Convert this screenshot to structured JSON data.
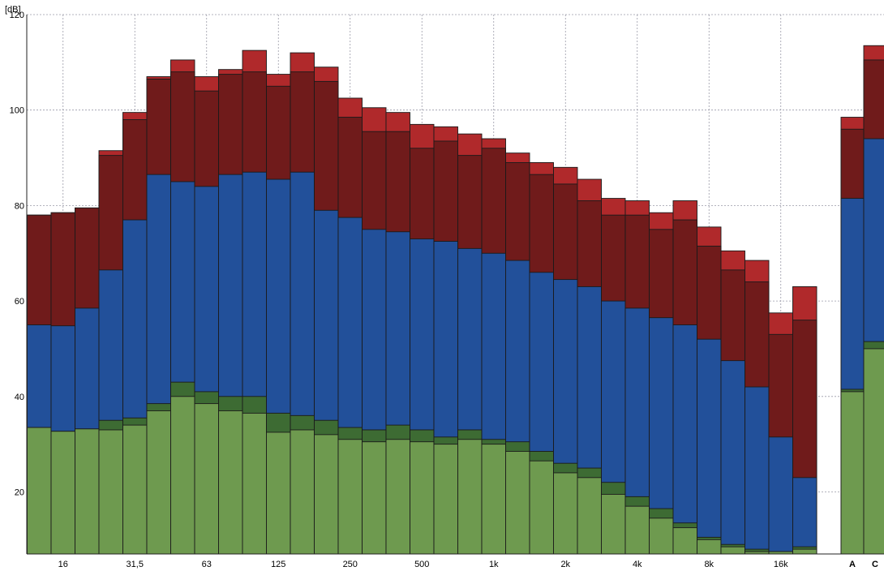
{
  "chart_data": {
    "type": "bar",
    "stacked": true,
    "overlay_stacked_levels": true,
    "y_unit_label": "[dB]",
    "ylim": [
      7,
      120
    ],
    "y_ticks": [
      20,
      40,
      60,
      80,
      100,
      120
    ],
    "grid": true,
    "x_tick_labels": [
      "16",
      "31,5",
      "63",
      "125",
      "250",
      "500",
      "1k",
      "2k",
      "4k",
      "8k",
      "16k"
    ],
    "x_tick_label_band_indices": [
      1,
      4,
      7,
      10,
      13,
      16,
      19,
      22,
      25,
      28,
      31
    ],
    "band_count": 33,
    "summary_categories": [
      "A",
      "C"
    ],
    "band_values": [
      {
        "g_light": 33.5,
        "g_dark": 33.5,
        "blue": 55,
        "dark_red": 78,
        "red": 78
      },
      {
        "g_light": 32.7,
        "g_dark": 32.7,
        "blue": 54.8,
        "dark_red": 78.5,
        "red": 78.5
      },
      {
        "g_light": 33.2,
        "g_dark": 33.2,
        "blue": 58.5,
        "dark_red": 79.5,
        "red": 79.5
      },
      {
        "g_light": 33,
        "g_dark": 35,
        "blue": 66.5,
        "dark_red": 90.5,
        "red": 91.5
      },
      {
        "g_light": 34,
        "g_dark": 35.5,
        "blue": 77,
        "dark_red": 98,
        "red": 99.5
      },
      {
        "g_light": 37,
        "g_dark": 38.5,
        "blue": 86.5,
        "dark_red": 106.5,
        "red": 107
      },
      {
        "g_light": 40,
        "g_dark": 43,
        "blue": 85,
        "dark_red": 108,
        "red": 110.5
      },
      {
        "g_light": 38.5,
        "g_dark": 41,
        "blue": 84,
        "dark_red": 104,
        "red": 107
      },
      {
        "g_light": 37,
        "g_dark": 40,
        "blue": 86.5,
        "dark_red": 107.5,
        "red": 108.5
      },
      {
        "g_light": 36.5,
        "g_dark": 40,
        "blue": 87,
        "dark_red": 108,
        "red": 112.5
      },
      {
        "g_light": 32.5,
        "g_dark": 36.5,
        "blue": 85.5,
        "dark_red": 105,
        "red": 107.5
      },
      {
        "g_light": 33,
        "g_dark": 36,
        "blue": 87,
        "dark_red": 108,
        "red": 112
      },
      {
        "g_light": 32,
        "g_dark": 35,
        "blue": 79,
        "dark_red": 106,
        "red": 109
      },
      {
        "g_light": 31,
        "g_dark": 33.5,
        "blue": 77.5,
        "dark_red": 98.5,
        "red": 102.5
      },
      {
        "g_light": 30.5,
        "g_dark": 33,
        "blue": 75,
        "dark_red": 95.5,
        "red": 100.5
      },
      {
        "g_light": 31,
        "g_dark": 34,
        "blue": 74.5,
        "dark_red": 95.5,
        "red": 99.5
      },
      {
        "g_light": 30.5,
        "g_dark": 33,
        "blue": 73,
        "dark_red": 92,
        "red": 97
      },
      {
        "g_light": 30,
        "g_dark": 31.5,
        "blue": 72.5,
        "dark_red": 93.5,
        "red": 96.5
      },
      {
        "g_light": 31,
        "g_dark": 33,
        "blue": 71,
        "dark_red": 90.5,
        "red": 95
      },
      {
        "g_light": 30,
        "g_dark": 31,
        "blue": 70,
        "dark_red": 92,
        "red": 94
      },
      {
        "g_light": 28.5,
        "g_dark": 30.5,
        "blue": 68.5,
        "dark_red": 89,
        "red": 91
      },
      {
        "g_light": 26.5,
        "g_dark": 28.5,
        "blue": 66,
        "dark_red": 86.5,
        "red": 89
      },
      {
        "g_light": 24,
        "g_dark": 26,
        "blue": 64.5,
        "dark_red": 84.5,
        "red": 88
      },
      {
        "g_light": 23,
        "g_dark": 25,
        "blue": 63,
        "dark_red": 81,
        "red": 85.5
      },
      {
        "g_light": 19.5,
        "g_dark": 22,
        "blue": 60,
        "dark_red": 78,
        "red": 81.5
      },
      {
        "g_light": 17,
        "g_dark": 19,
        "blue": 58.5,
        "dark_red": 78,
        "red": 81
      },
      {
        "g_light": 14.5,
        "g_dark": 16.5,
        "blue": 56.5,
        "dark_red": 75,
        "red": 78.5
      },
      {
        "g_light": 12.5,
        "g_dark": 13.5,
        "blue": 55,
        "dark_red": 77,
        "red": 81
      },
      {
        "g_light": 10,
        "g_dark": 10.5,
        "blue": 52,
        "dark_red": 71.5,
        "red": 75.5
      },
      {
        "g_light": 8.5,
        "g_dark": 9,
        "blue": 47.5,
        "dark_red": 66.5,
        "red": 70.5
      },
      {
        "g_light": 7.5,
        "g_dark": 8,
        "blue": 42,
        "dark_red": 64,
        "red": 68.5
      },
      {
        "g_light": 7.5,
        "g_dark": 7.5,
        "blue": 31.5,
        "dark_red": 53,
        "red": 57.5
      },
      {
        "g_light": 8,
        "g_dark": 8.5,
        "blue": 23,
        "dark_red": 56,
        "red": 63
      }
    ],
    "summary_values": [
      {
        "g_light": 41,
        "g_dark": 41.5,
        "blue": 81.5,
        "dark_red": 96,
        "red": 98.5
      },
      {
        "g_light": 50,
        "g_dark": 51.5,
        "blue": 94,
        "dark_red": 110.5,
        "red": 113.5
      }
    ],
    "colors": {
      "g_light": "#6e9a4f",
      "g_dark": "#3d6b33",
      "blue": "#22509a",
      "dark_red": "#701b1b",
      "red": "#b0292b",
      "bar_outline": "#1a1a1a",
      "grid": "#9a9aa8",
      "background": "#ffffff",
      "axis_text": "#000000"
    }
  }
}
